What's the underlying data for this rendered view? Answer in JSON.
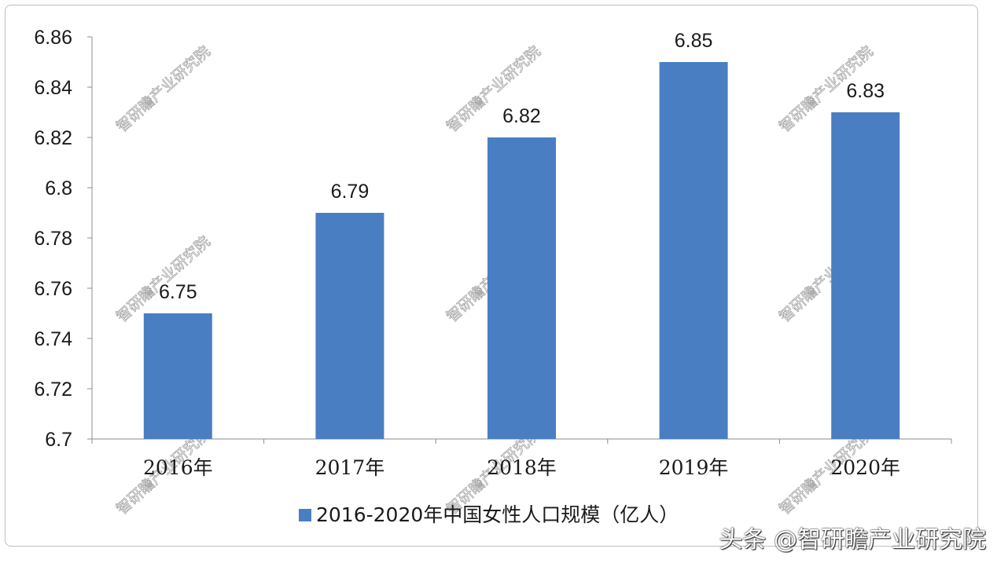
{
  "chart_data": {
    "type": "bar",
    "categories": [
      "2016年",
      "2017年",
      "2018年",
      "2019年",
      "2020年"
    ],
    "series": [
      {
        "name": "2016-2020年中国女性人口规模（亿人）",
        "values": [
          6.75,
          6.79,
          6.82,
          6.85,
          6.83
        ],
        "color": "#4a7ec2"
      }
    ],
    "data_labels": [
      "6.75",
      "6.79",
      "6.82",
      "6.85",
      "6.83"
    ],
    "y_ticks": [
      "6.86",
      "6.84",
      "6.82",
      "6.8",
      "6.78",
      "6.76",
      "6.74",
      "6.72",
      "6.7"
    ],
    "y_tick_values": [
      6.86,
      6.84,
      6.82,
      6.8,
      6.78,
      6.76,
      6.74,
      6.72,
      6.7
    ],
    "ylim": [
      6.7,
      6.86
    ],
    "grid": false,
    "legend_position": "bottom"
  },
  "watermark_text": "智研瞻产业研究院",
  "credit_text": "头条 @智研瞻产业研究院"
}
